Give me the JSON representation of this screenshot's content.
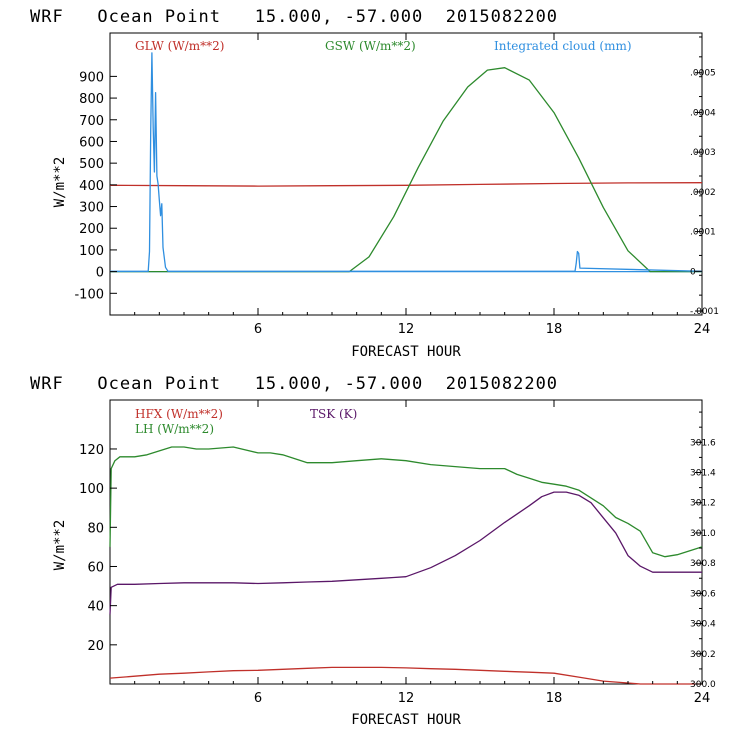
{
  "colors": {
    "glw": "#c0302a",
    "gsw": "#2d8a2d",
    "cloud": "#2f8fe0",
    "hfx": "#c0302a",
    "lh": "#2d8a2d",
    "tsk": "#5a1768"
  },
  "chart_data": [
    {
      "type": "line",
      "title": "WRF   Ocean Point   15.000, -57.000  2015082200",
      "xlabel": "FORECAST HOUR",
      "ylabel": "W/m**2",
      "xlim": [
        0,
        24
      ],
      "ylim": [
        -200,
        1100
      ],
      "x_ticks": [
        "6",
        "12",
        "18",
        "24"
      ],
      "y_ticks": [
        "-100",
        "0",
        "100",
        "200",
        "300",
        "400",
        "500",
        "600",
        "700",
        "800",
        "900"
      ],
      "y2_ticks": [
        "-.0001",
        "0",
        ".0001",
        ".0002",
        ".0003",
        ".0004",
        ".0005"
      ],
      "y2lim": [
        -0.00011,
        0.0006
      ],
      "series": [
        {
          "name": "GLW (W/m**2)",
          "axis": "left",
          "x": [
            0,
            3,
            6,
            9,
            12,
            15,
            18,
            21,
            24
          ],
          "values": [
            398,
            396,
            394,
            396,
            398,
            402,
            406,
            409,
            410
          ]
        },
        {
          "name": "GSW (W/m**2)",
          "axis": "left",
          "x": [
            0,
            9.7,
            10.5,
            11.5,
            12.5,
            13.5,
            14.5,
            15.3,
            16,
            17,
            18,
            19,
            20,
            21,
            21.9,
            24
          ],
          "values": [
            0,
            0,
            68,
            253,
            481,
            693,
            851,
            929,
            940,
            883,
            733,
            524,
            296,
            96,
            0,
            0
          ]
        },
        {
          "name": "Integrated cloud (mm)",
          "axis": "right",
          "x": [
            0,
            1.55,
            1.6,
            1.65,
            1.7,
            1.75,
            1.8,
            1.85,
            1.9,
            1.95,
            2.0,
            2.05,
            2.1,
            2.15,
            2.25,
            2.35,
            18.85,
            18.9,
            18.95,
            19.0,
            19.05,
            24
          ],
          "values": [
            0,
            0,
            5e-05,
            0.00035,
            0.00055,
            0.00036,
            0.00025,
            0.00045,
            0.00024,
            0.00022,
            0.00018,
            0.00014,
            0.00017,
            6e-05,
            1e-05,
            0,
            0,
            2e-05,
            5e-05,
            4.5e-05,
            8e-06,
            0
          ]
        }
      ]
    },
    {
      "type": "line",
      "title": "WRF   Ocean Point   15.000, -57.000  2015082200",
      "xlabel": "FORECAST HOUR",
      "ylabel": "W/m**2",
      "xlim": [
        0,
        24
      ],
      "ylim": [
        0,
        145
      ],
      "x_ticks": [
        "6",
        "12",
        "18",
        "24"
      ],
      "y_ticks": [
        "20",
        "40",
        "60",
        "80",
        "100",
        "120"
      ],
      "y2_ticks": [
        "300.0",
        "300.2",
        "300.4",
        "300.6",
        "300.8",
        "301.0",
        "301.2",
        "301.4",
        "301.6"
      ],
      "y2lim": [
        300.0,
        301.88
      ],
      "series": [
        {
          "name": "HFX (W/m**2)",
          "axis": "left",
          "x": [
            0,
            1,
            2,
            3,
            4,
            5,
            6,
            7,
            8,
            9,
            10,
            11,
            12,
            13,
            14,
            15,
            16,
            17,
            18,
            19,
            20,
            21,
            21.5,
            22,
            23,
            24
          ],
          "values": [
            3,
            4,
            5,
            5.5,
            6.2,
            6.8,
            7,
            7.5,
            8,
            8.5,
            8.5,
            8.5,
            8.2,
            7.8,
            7.5,
            7,
            6.5,
            6,
            5.5,
            3.5,
            1.5,
            0.5,
            0,
            0,
            0,
            0
          ]
        },
        {
          "name": "LH (W/m**2)",
          "axis": "left",
          "x": [
            0,
            0.05,
            0.2,
            0.4,
            1,
            1.5,
            2,
            2.5,
            3,
            3.5,
            4,
            5,
            6,
            6.5,
            7,
            8,
            9,
            10,
            11,
            12,
            13,
            14,
            15,
            16,
            16.5,
            17,
            17.5,
            18,
            18.5,
            19,
            19.5,
            20,
            20.5,
            21,
            21.5,
            22,
            22.5,
            23,
            24
          ],
          "values": [
            70,
            110,
            114,
            116,
            116,
            117,
            119,
            121,
            121,
            120,
            120,
            121,
            118,
            118,
            117,
            113,
            113,
            114,
            115,
            114,
            112,
            111,
            110,
            110,
            107,
            105,
            103,
            102,
            101,
            99,
            95,
            91,
            85,
            82,
            78,
            67,
            65,
            66,
            70
          ]
        },
        {
          "name": "TSK (K)",
          "axis": "right",
          "x": [
            0,
            0.05,
            0.3,
            1,
            2,
            3,
            4,
            5,
            6,
            7,
            8,
            9,
            10,
            11,
            11.5,
            12,
            13,
            14,
            15,
            16,
            17,
            17.5,
            18,
            18.5,
            19,
            19.5,
            20,
            20.5,
            21,
            21.5,
            22,
            23,
            24
          ],
          "values": [
            300.46,
            300.64,
            300.66,
            300.66,
            300.665,
            300.67,
            300.67,
            300.67,
            300.665,
            300.67,
            300.675,
            300.68,
            300.69,
            300.7,
            300.705,
            300.71,
            300.77,
            300.85,
            300.95,
            301.07,
            301.18,
            301.24,
            301.27,
            301.27,
            301.25,
            301.2,
            301.1,
            301.0,
            300.85,
            300.78,
            300.74,
            300.74,
            300.74
          ]
        }
      ]
    }
  ]
}
